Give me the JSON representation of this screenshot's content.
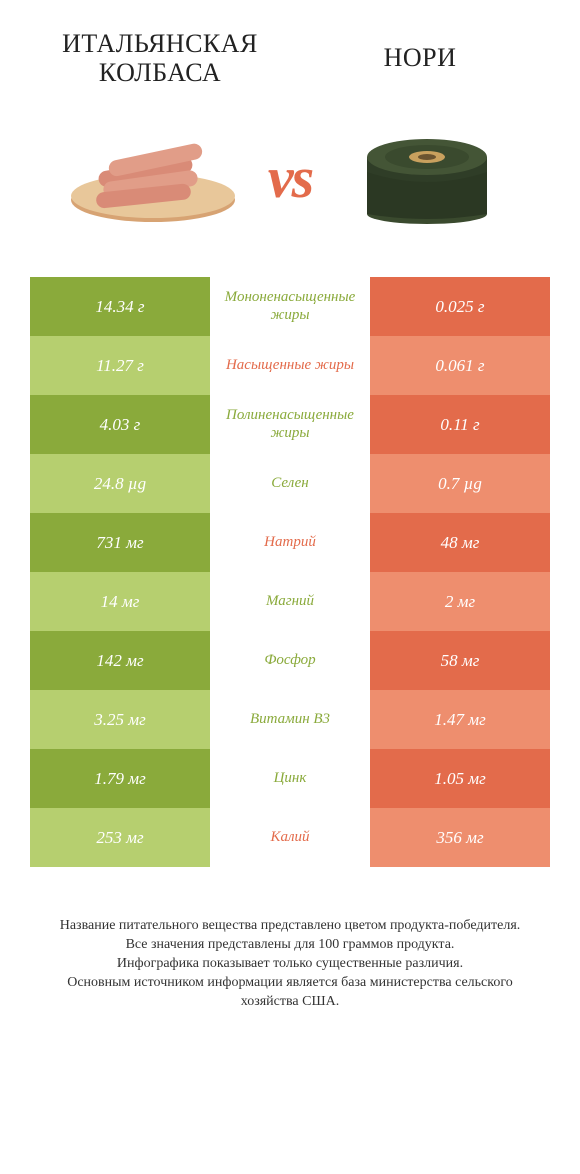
{
  "colors": {
    "green_dark": "#8aaa3b",
    "green_light": "#b6cf6f",
    "orange_dark": "#e36b4b",
    "orange_light": "#ee8e6e",
    "white": "#ffffff",
    "text_green": "#8aaa3b",
    "text_orange": "#e36b4b",
    "title_color": "#222222",
    "footer_color": "#333333"
  },
  "header": {
    "left_title": "Итальянская колбаса",
    "right_title": "Нори",
    "vs_label": "vs"
  },
  "rows": [
    {
      "left": "14.34 г",
      "label": "Мононенасыщенные жиры",
      "right": "0.025 г",
      "winner": "left"
    },
    {
      "left": "11.27 г",
      "label": "Насыщенные жиры",
      "right": "0.061 г",
      "winner": "right"
    },
    {
      "left": "4.03 г",
      "label": "Полиненасыщенные жиры",
      "right": "0.11 г",
      "winner": "left"
    },
    {
      "left": "24.8 µg",
      "label": "Селен",
      "right": "0.7 µg",
      "winner": "left"
    },
    {
      "left": "731 мг",
      "label": "Натрий",
      "right": "48 мг",
      "winner": "right"
    },
    {
      "left": "14 мг",
      "label": "Магний",
      "right": "2 мг",
      "winner": "left"
    },
    {
      "left": "142 мг",
      "label": "Фосфор",
      "right": "58 мг",
      "winner": "left"
    },
    {
      "left": "3.25 мг",
      "label": "Витамин B3",
      "right": "1.47 мг",
      "winner": "left"
    },
    {
      "left": "1.79 мг",
      "label": "Цинк",
      "right": "1.05 мг",
      "winner": "left"
    },
    {
      "left": "253 мг",
      "label": "Калий",
      "right": "356 мг",
      "winner": "right"
    }
  ],
  "footer": {
    "line1": "Название питательного вещества представлено цветом продукта-победителя.",
    "line2": "Все значения представлены для 100 граммов продукта.",
    "line3": "Инфографика показывает только существенные различия.",
    "line4": "Основным источником информации является база министерства сельского хозяйства США."
  }
}
